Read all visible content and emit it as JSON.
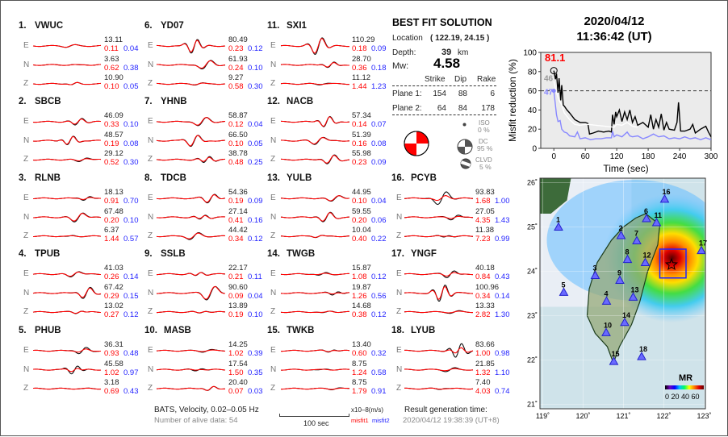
{
  "stations": [
    {
      "no": "1.",
      "name": "VWUC",
      "traces": [
        {
          "comp": "E",
          "peak": "13.11",
          "misfit1": "0.11",
          "misfit2": "0.04"
        },
        {
          "comp": "N",
          "peak": "3.63",
          "misfit1": "0.62",
          "misfit2": "0.38"
        },
        {
          "comp": "Z",
          "peak": "10.90",
          "misfit1": "0.10",
          "misfit2": "0.05"
        }
      ]
    },
    {
      "no": "2.",
      "name": "SBCB",
      "traces": [
        {
          "comp": "E",
          "peak": "46.09",
          "misfit1": "0.33",
          "misfit2": "0.10"
        },
        {
          "comp": "N",
          "peak": "48.57",
          "misfit1": "0.19",
          "misfit2": "0.08"
        },
        {
          "comp": "Z",
          "peak": "29.12",
          "misfit1": "0.52",
          "misfit2": "0.30"
        }
      ]
    },
    {
      "no": "3.",
      "name": "RLNB",
      "traces": [
        {
          "comp": "E",
          "peak": "18.13",
          "misfit1": "0.91",
          "misfit2": "0.70"
        },
        {
          "comp": "N",
          "peak": "67.48",
          "misfit1": "0.20",
          "misfit2": "0.10"
        },
        {
          "comp": "Z",
          "peak": "6.37",
          "misfit1": "1.44",
          "misfit2": "0.57"
        }
      ]
    },
    {
      "no": "4.",
      "name": "TPUB",
      "traces": [
        {
          "comp": "E",
          "peak": "41.03",
          "misfit1": "0.26",
          "misfit2": "0.14"
        },
        {
          "comp": "N",
          "peak": "67.42",
          "misfit1": "0.29",
          "misfit2": "0.15"
        },
        {
          "comp": "Z",
          "peak": "13.02",
          "misfit1": "0.27",
          "misfit2": "0.12"
        }
      ]
    },
    {
      "no": "5.",
      "name": "PHUB",
      "traces": [
        {
          "comp": "E",
          "peak": "36.31",
          "misfit1": "0.93",
          "misfit2": "0.48"
        },
        {
          "comp": "N",
          "peak": "45.58",
          "misfit1": "1.02",
          "misfit2": "0.97"
        },
        {
          "comp": "Z",
          "peak": "3.18",
          "misfit1": "0.69",
          "misfit2": "0.43"
        }
      ]
    },
    {
      "no": "6.",
      "name": "YD07",
      "traces": [
        {
          "comp": "E",
          "peak": "80.49",
          "misfit1": "0.23",
          "misfit2": "0.12"
        },
        {
          "comp": "N",
          "peak": "61.93",
          "misfit1": "0.24",
          "misfit2": "0.10"
        },
        {
          "comp": "Z",
          "peak": "9.27",
          "misfit1": "0.58",
          "misfit2": "0.30"
        }
      ]
    },
    {
      "no": "7.",
      "name": "YHNB",
      "traces": [
        {
          "comp": "E",
          "peak": "58.87",
          "misfit1": "0.12",
          "misfit2": "0.04"
        },
        {
          "comp": "N",
          "peak": "66.50",
          "misfit1": "0.10",
          "misfit2": "0.05"
        },
        {
          "comp": "Z",
          "peak": "38.78",
          "misfit1": "0.48",
          "misfit2": "0.25"
        }
      ]
    },
    {
      "no": "8.",
      "name": "TDCB",
      "traces": [
        {
          "comp": "E",
          "peak": "54.36",
          "misfit1": "0.19",
          "misfit2": "0.09"
        },
        {
          "comp": "N",
          "peak": "27.14",
          "misfit1": "0.41",
          "misfit2": "0.16"
        },
        {
          "comp": "Z",
          "peak": "44.42",
          "misfit1": "0.34",
          "misfit2": "0.12"
        }
      ]
    },
    {
      "no": "9.",
      "name": "SSLB",
      "traces": [
        {
          "comp": "E",
          "peak": "22.17",
          "misfit1": "0.21",
          "misfit2": "0.11"
        },
        {
          "comp": "N",
          "peak": "90.60",
          "misfit1": "0.09",
          "misfit2": "0.04"
        },
        {
          "comp": "Z",
          "peak": "13.89",
          "misfit1": "0.19",
          "misfit2": "0.10"
        }
      ]
    },
    {
      "no": "10.",
      "name": "MASB",
      "traces": [
        {
          "comp": "E",
          "peak": "14.25",
          "misfit1": "1.02",
          "misfit2": "0.39"
        },
        {
          "comp": "N",
          "peak": "17.54",
          "misfit1": "1.50",
          "misfit2": "0.35"
        },
        {
          "comp": "Z",
          "peak": "20.40",
          "misfit1": "0.07",
          "misfit2": "0.03"
        }
      ]
    },
    {
      "no": "11.",
      "name": "SXI1",
      "traces": [
        {
          "comp": "E",
          "peak": "110.29",
          "misfit1": "0.18",
          "misfit2": "0.09"
        },
        {
          "comp": "N",
          "peak": "28.70",
          "misfit1": "0.36",
          "misfit2": "0.18"
        },
        {
          "comp": "Z",
          "peak": "11.12",
          "misfit1": "1.44",
          "misfit2": "1.23"
        }
      ]
    },
    {
      "no": "12.",
      "name": "NACB",
      "traces": [
        {
          "comp": "E",
          "peak": "57.34",
          "misfit1": "0.14",
          "misfit2": "0.07"
        },
        {
          "comp": "N",
          "peak": "51.39",
          "misfit1": "0.16",
          "misfit2": "0.08"
        },
        {
          "comp": "Z",
          "peak": "55.98",
          "misfit1": "0.23",
          "misfit2": "0.09"
        }
      ]
    },
    {
      "no": "13.",
      "name": "YULB",
      "traces": [
        {
          "comp": "E",
          "peak": "44.95",
          "misfit1": "0.10",
          "misfit2": "0.04"
        },
        {
          "comp": "N",
          "peak": "59.55",
          "misfit1": "0.20",
          "misfit2": "0.06"
        },
        {
          "comp": "Z",
          "peak": "10.04",
          "misfit1": "0.40",
          "misfit2": "0.22"
        }
      ]
    },
    {
      "no": "14.",
      "name": "TWGB",
      "traces": [
        {
          "comp": "E",
          "peak": "15.87",
          "misfit1": "1.08",
          "misfit2": "0.12"
        },
        {
          "comp": "N",
          "peak": "19.87",
          "misfit1": "1.26",
          "misfit2": "0.56"
        },
        {
          "comp": "Z",
          "peak": "14.68",
          "misfit1": "0.38",
          "misfit2": "0.12"
        }
      ]
    },
    {
      "no": "15.",
      "name": "TWKB",
      "traces": [
        {
          "comp": "E",
          "peak": "13.40",
          "misfit1": "0.60",
          "misfit2": "0.32"
        },
        {
          "comp": "N",
          "peak": "8.75",
          "misfit1": "1.24",
          "misfit2": "0.58"
        },
        {
          "comp": "Z",
          "peak": "8.75",
          "misfit1": "1.79",
          "misfit2": "0.91"
        }
      ]
    },
    {
      "no": "16.",
      "name": "PCYB",
      "traces": [
        {
          "comp": "E",
          "peak": "93.83",
          "misfit1": "1.68",
          "misfit2": "1.00"
        },
        {
          "comp": "N",
          "peak": "27.05",
          "misfit1": "4.35",
          "misfit2": "1.43"
        },
        {
          "comp": "Z",
          "peak": "11.38",
          "misfit1": "7.23",
          "misfit2": "0.99"
        }
      ]
    },
    {
      "no": "17.",
      "name": "YNGF",
      "traces": [
        {
          "comp": "E",
          "peak": "40.18",
          "misfit1": "0.84",
          "misfit2": "0.43"
        },
        {
          "comp": "N",
          "peak": "100.96",
          "misfit1": "0.34",
          "misfit2": "0.14"
        },
        {
          "comp": "Z",
          "peak": "13.33",
          "misfit1": "2.82",
          "misfit2": "1.30"
        }
      ]
    },
    {
      "no": "18.",
      "name": "LYUB",
      "traces": [
        {
          "comp": "E",
          "peak": "83.66",
          "misfit1": "1.00",
          "misfit2": "0.98"
        },
        {
          "comp": "N",
          "peak": "21.85",
          "misfit1": "1.32",
          "misfit2": "1.10"
        },
        {
          "comp": "Z",
          "peak": "7.40",
          "misfit1": "4.03",
          "misfit2": "0.74"
        }
      ]
    }
  ],
  "footer": {
    "line1": "BATS, Velocity, 0.02–0.05 Hz",
    "line2": "Number of alive data: 54",
    "scale_label": "100 sec",
    "unit": "x10–8(m/s)",
    "misfit1": "misfit1",
    "misfit2": "misfit2",
    "gen_label": "Result generation time:",
    "gen_time": "2020/04/12 19:38:39 (UT+8)"
  },
  "best_fit": {
    "title": "BEST FIT SOLUTION",
    "location_label": "Location",
    "location": "( 122.19,  24.15 )",
    "depth_label": "Depth:",
    "depth": "39",
    "depth_unit": "km",
    "mw_label": "Mw:",
    "mw": "4.58",
    "headers": [
      "Strike",
      "Dip",
      "Rake"
    ],
    "planes": [
      {
        "label": "Plane 1:",
        "strike": "154",
        "dip": "88",
        "rake": "6"
      },
      {
        "label": "Plane 2:",
        "strike": "64",
        "dip": "84",
        "rake": "178"
      }
    ],
    "iso_label": "ISO",
    "iso": "0 %",
    "dc_label": "DC",
    "dc": "95 %",
    "clvd_label": "CLVD",
    "clvd": "5 %",
    "beachball_color": "#ff0000"
  },
  "event": {
    "date": "2020/04/12",
    "time": "11:36:42  (UT)"
  },
  "chart_data": {
    "type": "line",
    "xlabel": "Time (sec)",
    "ylabel": "Misfit reduction (%)",
    "xlim": [
      -25,
      300
    ],
    "ylim": [
      0,
      100
    ],
    "xticks": [
      0,
      60,
      120,
      180,
      240,
      300
    ],
    "yticks": [
      0,
      20,
      40,
      60,
      80,
      100
    ],
    "threshold": 60,
    "grid": false,
    "annotations": {
      "max": "81.1",
      "white_start": "46",
      "blue_start": "47"
    },
    "series": [
      {
        "color": "#000000",
        "x": [
          0,
          3,
          5,
          8,
          10,
          13,
          15,
          18,
          20,
          25,
          30,
          40,
          50,
          60,
          65,
          68,
          75,
          85,
          95,
          105,
          110,
          112,
          115,
          118,
          120,
          125,
          130,
          135,
          140,
          145,
          150,
          155,
          160,
          170,
          180,
          185,
          190,
          195,
          200,
          205,
          210,
          215,
          220,
          230,
          235,
          238,
          242,
          250,
          260,
          265,
          270,
          280,
          290,
          295,
          300
        ],
        "y": [
          81,
          72,
          78,
          58,
          73,
          50,
          66,
          45,
          44,
          40,
          37,
          30,
          27,
          27,
          26,
          15,
          16,
          18,
          17,
          18,
          17,
          35,
          25,
          38,
          33,
          40,
          28,
          38,
          30,
          40,
          27,
          33,
          24,
          27,
          22,
          35,
          20,
          30,
          22,
          36,
          19,
          27,
          20,
          19,
          27,
          48,
          18,
          18,
          20,
          25,
          16,
          20,
          23,
          17,
          12
        ]
      },
      {
        "color": "#ffffff",
        "x": [
          0,
          5,
          10,
          15,
          20,
          30,
          40,
          50,
          60,
          65,
          115,
          120,
          130,
          140,
          150,
          160
        ],
        "y": [
          70,
          58,
          50,
          45,
          37,
          30,
          25,
          24,
          25,
          25,
          22,
          25,
          24,
          27,
          23,
          22
        ]
      },
      {
        "color": "#8888ff",
        "x": [
          0,
          3,
          5,
          8,
          12,
          15,
          20,
          25,
          30,
          40,
          45,
          50,
          60,
          70,
          80,
          90,
          100,
          110,
          112,
          115,
          120,
          130,
          140,
          145,
          150,
          160,
          170,
          180,
          190,
          200,
          210,
          220,
          230,
          240,
          250,
          260,
          270,
          280,
          290,
          300
        ],
        "y": [
          60,
          45,
          35,
          28,
          29,
          20,
          17,
          16,
          13,
          12,
          17,
          10,
          11,
          9,
          10,
          10,
          11,
          11,
          18,
          12,
          14,
          12,
          17,
          13,
          12,
          13,
          10,
          12,
          15,
          12,
          13,
          10,
          11,
          10,
          12,
          10,
          11,
          9,
          11,
          9
        ]
      }
    ]
  },
  "map": {
    "lon_ticks": [
      "119˚",
      "120˚",
      "121˚",
      "122˚",
      "123˚"
    ],
    "lat_ticks": [
      "21˚",
      "22˚",
      "23˚",
      "24˚",
      "25˚",
      "26˚"
    ],
    "legend_title": "MR",
    "legend_ticks": "0 20 40 60",
    "epicenter": {
      "lon": 122.19,
      "lat": 24.15
    },
    "stations": [
      {
        "id": "1",
        "lon": 119.39,
        "lat": 25.0
      },
      {
        "id": "2",
        "lon": 120.94,
        "lat": 24.81
      },
      {
        "id": "3",
        "lon": 120.3,
        "lat": 23.91
      },
      {
        "id": "4",
        "lon": 120.58,
        "lat": 23.33
      },
      {
        "id": "5",
        "lon": 119.52,
        "lat": 23.53
      },
      {
        "id": "6",
        "lon": 121.57,
        "lat": 25.19
      },
      {
        "id": "7",
        "lon": 121.33,
        "lat": 24.69
      },
      {
        "id": "8",
        "lon": 121.1,
        "lat": 24.27
      },
      {
        "id": "9",
        "lon": 120.91,
        "lat": 23.8
      },
      {
        "id": "10",
        "lon": 120.57,
        "lat": 22.62
      },
      {
        "id": "11",
        "lon": 121.82,
        "lat": 25.1
      },
      {
        "id": "12",
        "lon": 121.54,
        "lat": 24.2
      },
      {
        "id": "13",
        "lon": 121.24,
        "lat": 23.42
      },
      {
        "id": "14",
        "lon": 121.03,
        "lat": 22.85
      },
      {
        "id": "15",
        "lon": 120.76,
        "lat": 21.97
      },
      {
        "id": "16",
        "lon": 122.02,
        "lat": 25.63
      },
      {
        "id": "17",
        "lon": 122.93,
        "lat": 24.47
      },
      {
        "id": "18",
        "lon": 121.45,
        "lat": 22.08
      }
    ]
  }
}
